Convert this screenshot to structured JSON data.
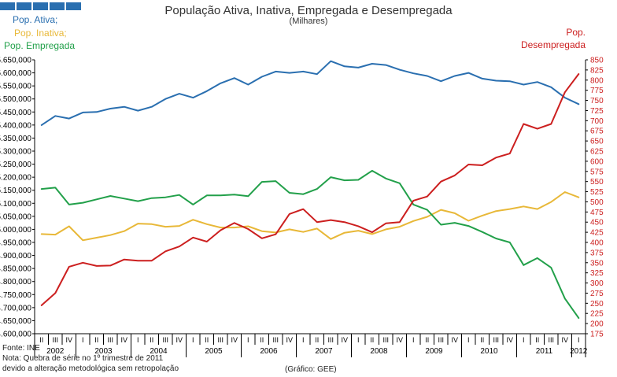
{
  "header": {
    "title": "População Ativa, Inativa, Empregada e Desempregada",
    "subtitle": "(Milhares)"
  },
  "legend": {
    "ativa": "Pop. Ativa;",
    "inativa": "Pop. Inativa;",
    "empregada": "Pop. Empregada",
    "desempregada_line1": "Pop.",
    "desempregada_line2": "Desempregada"
  },
  "footer": {
    "source": "Fonte: INE",
    "note1": "Nota: Quebra de série no 1º trimestre de 2011",
    "note2": "devido a alteração metodológica sem retropolação",
    "credit": "(Gráfico: GEE)"
  },
  "colors": {
    "ativa": "#2a6fb0",
    "inativa": "#e8b838",
    "empregada": "#22a04a",
    "desempregada": "#cc1f1f",
    "logo": "#2a6fb0"
  },
  "chart_data": {
    "type": "line",
    "title": "População Ativa, Inativa, Empregada e Desempregada",
    "subtitle": "(Milhares)",
    "left_axis": {
      "ylim": [
        4600,
        5650
      ],
      "step": 50
    },
    "right_axis": {
      "ylim": [
        175,
        850
      ],
      "step": 25
    },
    "grid": false,
    "quarters": [
      "II",
      "III",
      "IV",
      "I",
      "II",
      "III",
      "IV",
      "I",
      "II",
      "III",
      "IV",
      "I",
      "II",
      "III",
      "IV",
      "I",
      "II",
      "III",
      "IV",
      "I",
      "II",
      "III",
      "IV",
      "I",
      "II",
      "III",
      "IV",
      "I",
      "II",
      "III",
      "IV",
      "I",
      "II",
      "III",
      "IV",
      "I",
      "II",
      "III",
      "IV",
      "I"
    ],
    "years": [
      {
        "label": "2002",
        "start": 0,
        "end": 2
      },
      {
        "label": "2003",
        "start": 3,
        "end": 6
      },
      {
        "label": "2004",
        "start": 7,
        "end": 10
      },
      {
        "label": "2005",
        "start": 11,
        "end": 14
      },
      {
        "label": "2006",
        "start": 15,
        "end": 18
      },
      {
        "label": "2007",
        "start": 19,
        "end": 22
      },
      {
        "label": "2008",
        "start": 23,
        "end": 26
      },
      {
        "label": "2009",
        "start": 27,
        "end": 30
      },
      {
        "label": "2010",
        "start": 31,
        "end": 34
      },
      {
        "label": "2011",
        "start": 35,
        "end": 38
      },
      {
        "label": "2012",
        "start": 39,
        "end": 39
      }
    ],
    "series": [
      {
        "name": "Pop. Ativa",
        "axis": "left",
        "color": "#2a6fb0",
        "values": [
          5400,
          5435,
          5425,
          5448,
          5450,
          5463,
          5470,
          5455,
          5470,
          5500,
          5520,
          5505,
          5530,
          5560,
          5580,
          5555,
          5585,
          5605,
          5600,
          5605,
          5595,
          5645,
          5625,
          5620,
          5635,
          5630,
          5612,
          5598,
          5588,
          5568,
          5588,
          5600,
          5578,
          5570,
          5568,
          5555,
          5565,
          5545,
          5505,
          5480
        ]
      },
      {
        "name": "Pop. Inativa",
        "axis": "left",
        "color": "#e8b838",
        "values": [
          4982,
          4980,
          5012,
          4958,
          4968,
          4978,
          4993,
          5022,
          5020,
          5010,
          5013,
          5037,
          5020,
          5007,
          5007,
          5012,
          4993,
          4988,
          5000,
          4990,
          5003,
          4963,
          4987,
          4995,
          4982,
          5000,
          5010,
          5032,
          5048,
          5075,
          5062,
          5033,
          5053,
          5070,
          5078,
          5088,
          5078,
          5105,
          5143,
          5123
        ]
      },
      {
        "name": "Pop. Empregada",
        "axis": "left",
        "color": "#22a04a",
        "values": [
          5155,
          5160,
          5095,
          5102,
          5115,
          5128,
          5118,
          5108,
          5120,
          5123,
          5132,
          5095,
          5130,
          5130,
          5133,
          5127,
          5182,
          5185,
          5140,
          5135,
          5155,
          5200,
          5188,
          5190,
          5225,
          5195,
          5177,
          5095,
          5075,
          5018,
          5025,
          5013,
          4990,
          4965,
          4950,
          4863,
          4890,
          4853,
          4735,
          4660
        ]
      },
      {
        "name": "Pop. Desempregada",
        "axis": "right",
        "color": "#cc1f1f",
        "values": [
          245,
          275,
          340,
          350,
          342,
          343,
          358,
          355,
          355,
          378,
          390,
          412,
          402,
          430,
          448,
          433,
          410,
          420,
          470,
          482,
          450,
          455,
          450,
          440,
          425,
          447,
          450,
          503,
          513,
          550,
          565,
          592,
          590,
          609,
          619,
          692,
          680,
          692,
          770,
          815
        ]
      }
    ]
  }
}
